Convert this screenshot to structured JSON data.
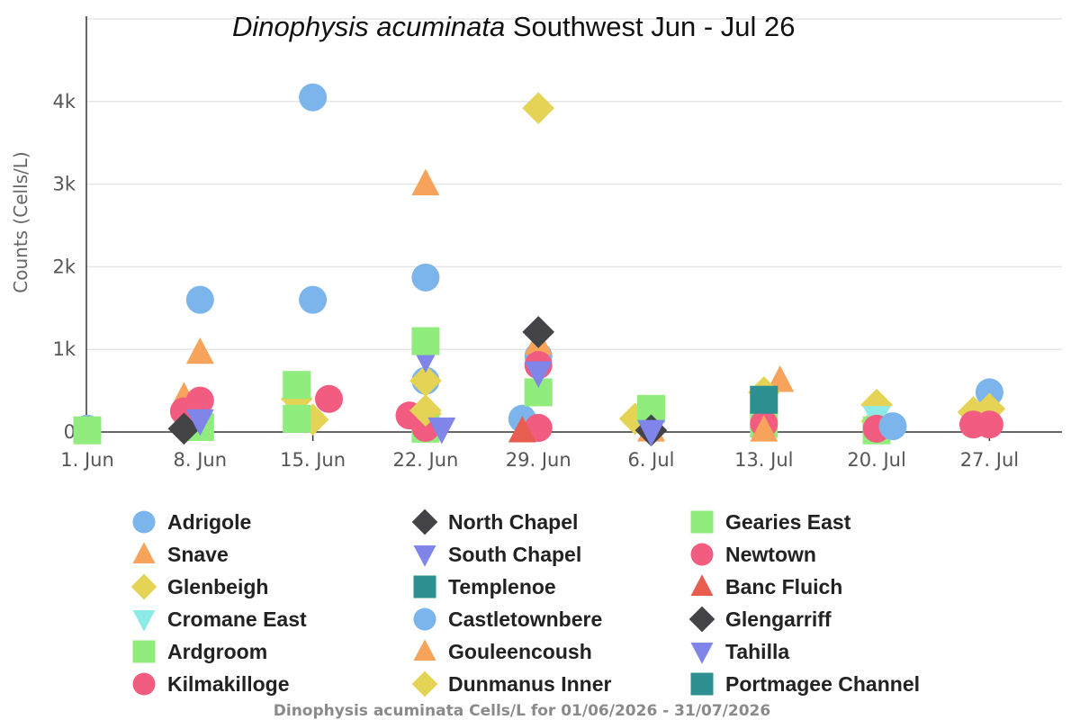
{
  "title": {
    "italic": "Dinophysis acuminata",
    "rest": " Southwest Jun - Jul 26"
  },
  "caption": "Dinophysis acuminata Cells/L for 01/06/2026 - 31/07/2026",
  "chart_data": {
    "type": "scatter",
    "xlabel": "",
    "ylabel": "Counts (Cells/L)",
    "x_range": [
      "2026-06-01",
      "2026-07-31"
    ],
    "ylim": [
      0,
      5000
    ],
    "x_ticks": [
      "1. Jun",
      "8. Jun",
      "15. Jun",
      "22. Jun",
      "29. Jun",
      "6. Jul",
      "13. Jul",
      "20. Jul",
      "27. Jul"
    ],
    "y_ticks": [
      "0",
      "1k",
      "2k",
      "3k",
      "4k"
    ],
    "grid": true,
    "legend_position": "bottom",
    "series": [
      {
        "name": "Adrigole",
        "marker": "circle",
        "color": "#7cb5ec",
        "points": [
          [
            "2026-06-01",
            40
          ],
          [
            "2026-06-08",
            1600
          ],
          [
            "2026-06-15",
            4050
          ],
          [
            "2026-06-15",
            1600
          ],
          [
            "2026-06-22",
            1870
          ],
          [
            "2026-06-22",
            620
          ],
          [
            "2026-06-28",
            160
          ],
          [
            "2026-06-29",
            920
          ],
          [
            "2026-07-20",
            80
          ],
          [
            "2026-07-27",
            480
          ]
        ]
      },
      {
        "name": "Snave",
        "marker": "triangle",
        "color": "#f7a35c",
        "points": [
          [
            "2026-06-08",
            960
          ],
          [
            "2026-06-07",
            420
          ],
          [
            "2026-06-22",
            3000
          ],
          [
            "2026-06-29",
            1070
          ],
          [
            "2026-07-14",
            620
          ],
          [
            "2026-07-06",
            20
          ]
        ]
      },
      {
        "name": "Glenbeigh",
        "marker": "diamond",
        "color": "#e4d354",
        "points": [
          [
            "2026-06-14",
            400
          ],
          [
            "2026-06-15",
            150
          ],
          [
            "2026-06-22",
            620
          ],
          [
            "2026-06-22",
            220
          ],
          [
            "2026-06-29",
            3920
          ],
          [
            "2026-07-05",
            160
          ],
          [
            "2026-07-13",
            480
          ],
          [
            "2026-07-20",
            330
          ],
          [
            "2026-07-20",
            130
          ],
          [
            "2026-07-26",
            240
          ],
          [
            "2026-07-27",
            280
          ]
        ]
      },
      {
        "name": "Cromane East",
        "marker": "triangle-down",
        "color": "#8eeae6",
        "points": [
          [
            "2026-07-20",
            180
          ]
        ]
      },
      {
        "name": "Ardgroom",
        "marker": "square",
        "color": "#90ed7d",
        "points": [
          [
            "2026-06-01",
            20
          ],
          [
            "2026-06-08",
            60
          ],
          [
            "2026-06-14",
            570
          ],
          [
            "2026-06-14",
            160
          ],
          [
            "2026-06-22",
            40
          ],
          [
            "2026-06-29",
            480
          ],
          [
            "2026-07-06",
            280
          ],
          [
            "2026-07-13",
            100
          ],
          [
            "2026-07-20",
            20
          ]
        ]
      },
      {
        "name": "Kilmakilloge",
        "marker": "circle",
        "color": "#f15c80",
        "points": [
          [
            "2026-06-07",
            250
          ],
          [
            "2026-06-08",
            380
          ],
          [
            "2026-06-16",
            400
          ],
          [
            "2026-06-21",
            200
          ],
          [
            "2026-06-22",
            50
          ],
          [
            "2026-06-29",
            810
          ],
          [
            "2026-06-29",
            50
          ],
          [
            "2026-07-13",
            100
          ],
          [
            "2026-07-20",
            40
          ],
          [
            "2026-07-26",
            90
          ],
          [
            "2026-07-27",
            90
          ]
        ]
      },
      {
        "name": "North Chapel",
        "marker": "diamond",
        "color": "#434348",
        "points": [
          [
            "2026-06-29",
            1210
          ],
          [
            "2026-06-07",
            40
          ]
        ]
      },
      {
        "name": "South Chapel",
        "marker": "triangle-down",
        "color": "#8085e9",
        "points": [
          [
            "2026-06-22",
            900
          ],
          [
            "2026-06-29",
            720
          ],
          [
            "2026-06-08",
            140
          ]
        ]
      },
      {
        "name": "Templenoe",
        "marker": "square",
        "color": "#2b908f",
        "points": [
          [
            "2026-07-13",
            390
          ]
        ]
      },
      {
        "name": "Castletownbere",
        "marker": "circle",
        "color": "#7cb5ec",
        "points": [
          [
            "2026-07-21",
            70
          ]
        ]
      },
      {
        "name": "Gouleencoush",
        "marker": "triangle",
        "color": "#f7a35c",
        "points": [
          [
            "2026-07-13",
            20
          ]
        ]
      },
      {
        "name": "Dunmanus Inner",
        "marker": "diamond",
        "color": "#e4d354",
        "points": [
          [
            "2026-06-22",
            260
          ]
        ]
      },
      {
        "name": "Gearies East",
        "marker": "square",
        "color": "#90ed7d",
        "points": [
          [
            "2026-06-22",
            1100
          ]
        ]
      },
      {
        "name": "Newtown",
        "marker": "circle",
        "color": "#f15c80",
        "points": [
          [
            "2026-06-29",
            50
          ]
        ]
      },
      {
        "name": "Banc Fluich",
        "marker": "triangle",
        "color": "#e75e50",
        "points": [
          [
            "2026-06-28",
            10
          ]
        ]
      },
      {
        "name": "Glengarriff",
        "marker": "diamond",
        "color": "#434348",
        "points": [
          [
            "2026-07-06",
            20
          ]
        ]
      },
      {
        "name": "Tahilla",
        "marker": "triangle-down",
        "color": "#8085e9",
        "points": [
          [
            "2026-06-23",
            40
          ],
          [
            "2026-07-06",
            10
          ]
        ]
      },
      {
        "name": "Portmagee Channel",
        "marker": "square",
        "color": "#2b908f",
        "points": []
      }
    ]
  }
}
